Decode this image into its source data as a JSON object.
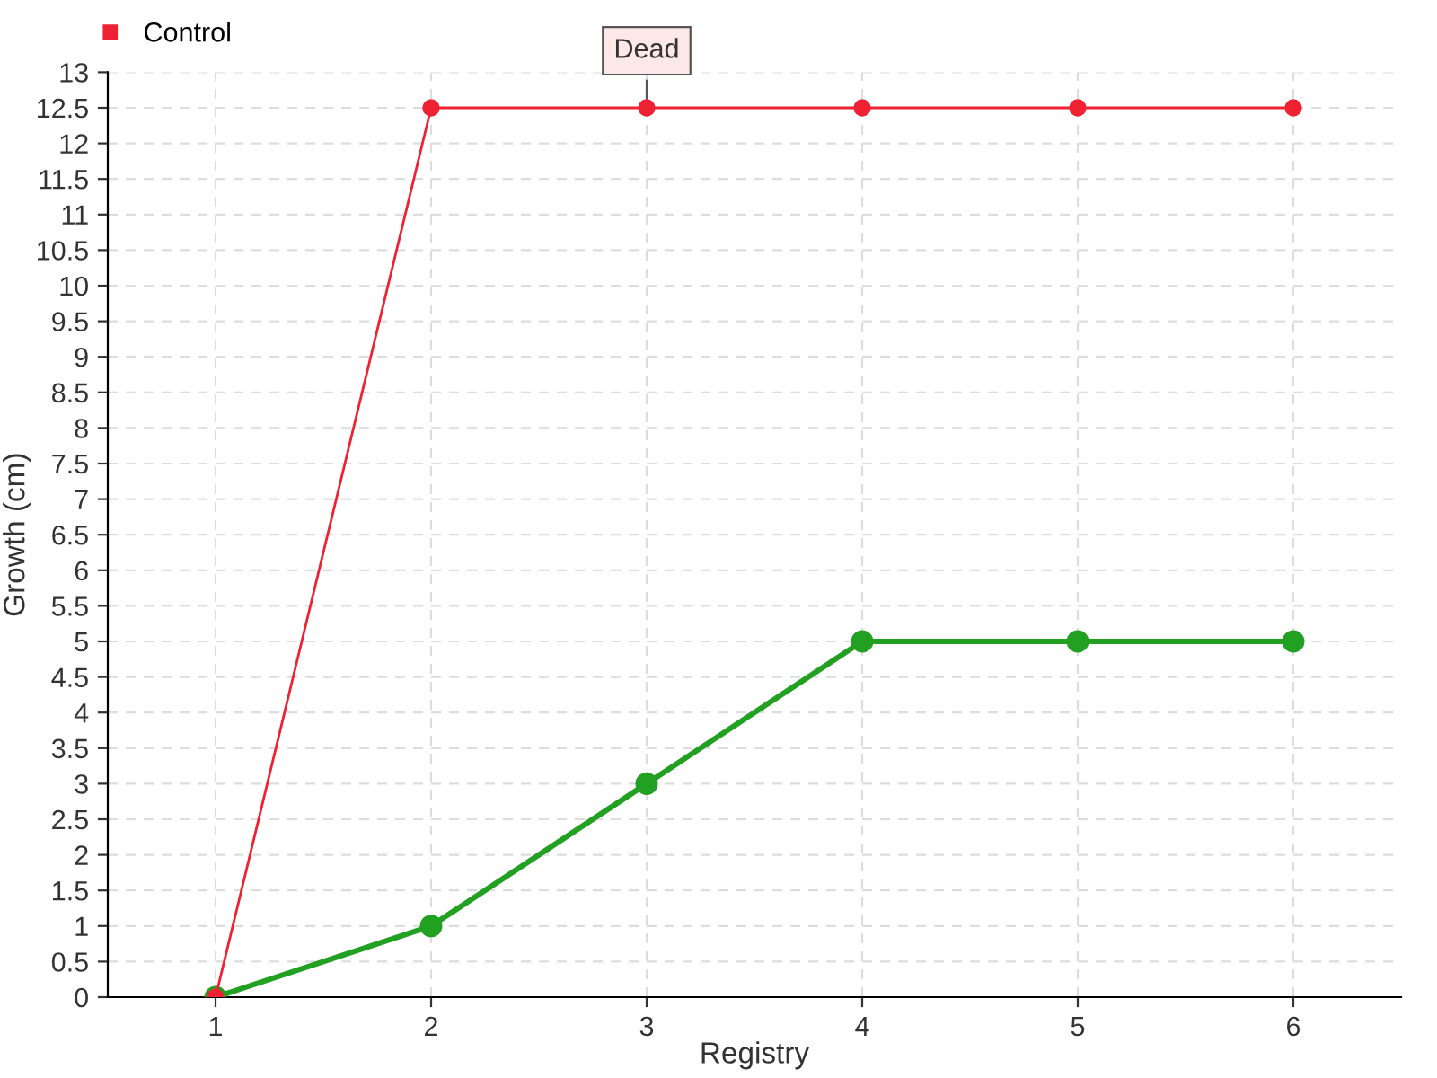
{
  "chart_data": {
    "type": "line",
    "xlabel": "Registry",
    "ylabel": "Growth (cm)",
    "categories": [
      "1",
      "2",
      "3",
      "4",
      "5",
      "6"
    ],
    "series": [
      {
        "color": "#22a022",
        "values": [
          0,
          1,
          3,
          5,
          5,
          5
        ]
      },
      {
        "name": "Control",
        "color": "#ee2233",
        "values": [
          0,
          12.5,
          12.5,
          12.5,
          12.5,
          12.5
        ]
      }
    ],
    "annotations": [
      {
        "text": "Dead",
        "x": "3",
        "y": 12.5
      }
    ],
    "ylim": [
      0,
      13
    ],
    "yticks": [
      0,
      {
        "value": 0.5,
        "label": "0.5"
      },
      1,
      {
        "value": 1.5,
        "label": "1.5"
      },
      2,
      {
        "value": 2.5,
        "label": "2.5"
      },
      3,
      {
        "value": 3.5,
        "label": "3.5"
      },
      4,
      {
        "value": 4.5,
        "label": "4.5"
      },
      5,
      {
        "value": 5.5,
        "label": "5.5"
      },
      6,
      {
        "value": 6.5,
        "label": "6.5"
      },
      7,
      {
        "value": 7.5,
        "label": "7.5"
      },
      8,
      {
        "value": 8.5,
        "label": "8.5"
      },
      9,
      {
        "value": 9.5,
        "label": "9.5"
      },
      10,
      {
        "value": 10.5,
        "label": "10.5"
      },
      11,
      {
        "value": 11.5,
        "label": "11.5"
      },
      12,
      {
        "value": 12.5,
        "label": "12.5"
      },
      13
    ],
    "grid": true,
    "legend": "top left",
    "marker": "circle",
    "line_style": "solid"
  }
}
